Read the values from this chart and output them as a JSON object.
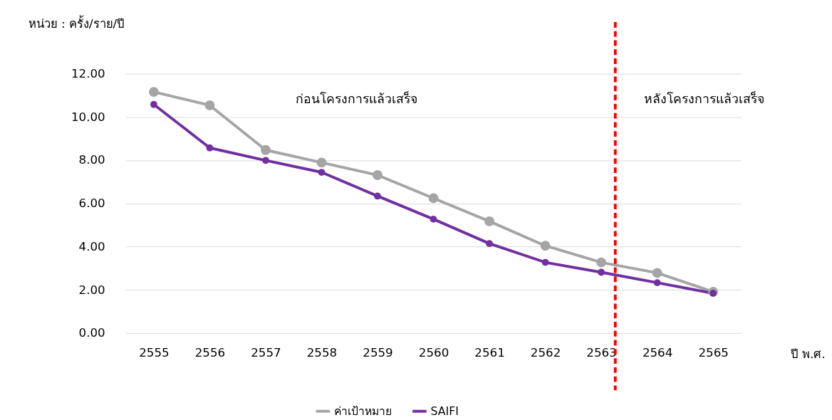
{
  "chart_data": {
    "type": "line",
    "ylabel": "หน่วย : ครั้ง/ราย/ปี",
    "xlabel": "ปี พ.ศ.",
    "categories": [
      "2555",
      "2556",
      "2557",
      "2558",
      "2559",
      "2560",
      "2561",
      "2562",
      "2563",
      "2564",
      "2565"
    ],
    "series": [
      {
        "name": "ค่าเป้าหมาย",
        "color": "#a5a5a5",
        "values": [
          11.16,
          10.54,
          8.47,
          7.89,
          7.31,
          6.24,
          5.17,
          4.04,
          3.27,
          2.78,
          1.91
        ]
      },
      {
        "name": "SAIFI",
        "color": "#7030a0",
        "values": [
          10.58,
          8.57,
          7.99,
          7.44,
          6.34,
          5.27,
          4.14,
          3.27,
          2.81,
          2.33,
          1.84
        ]
      }
    ],
    "ylim": [
      0,
      12
    ],
    "yticks": [
      {
        "value": 0,
        "label": "0.00"
      },
      {
        "value": 2,
        "label": "2.00"
      },
      {
        "value": 4,
        "label": "4.00"
      },
      {
        "value": 6,
        "label": "6.00"
      },
      {
        "value": 8,
        "label": "8.00"
      },
      {
        "value": 10,
        "label": "10.00"
      },
      {
        "value": 12,
        "label": "12.00"
      }
    ],
    "ref_lines": [
      {
        "axis": "x",
        "value": "2563",
        "color": "#ff0000",
        "line_style": "dashed"
      }
    ],
    "annotations": [
      "ก่อนโครงการแล้วเสร็จ",
      "หลังโครงการแล้วเสร็จ"
    ],
    "grid": "y",
    "legend": "bottom",
    "marker": "circle",
    "line_style": "solid"
  }
}
